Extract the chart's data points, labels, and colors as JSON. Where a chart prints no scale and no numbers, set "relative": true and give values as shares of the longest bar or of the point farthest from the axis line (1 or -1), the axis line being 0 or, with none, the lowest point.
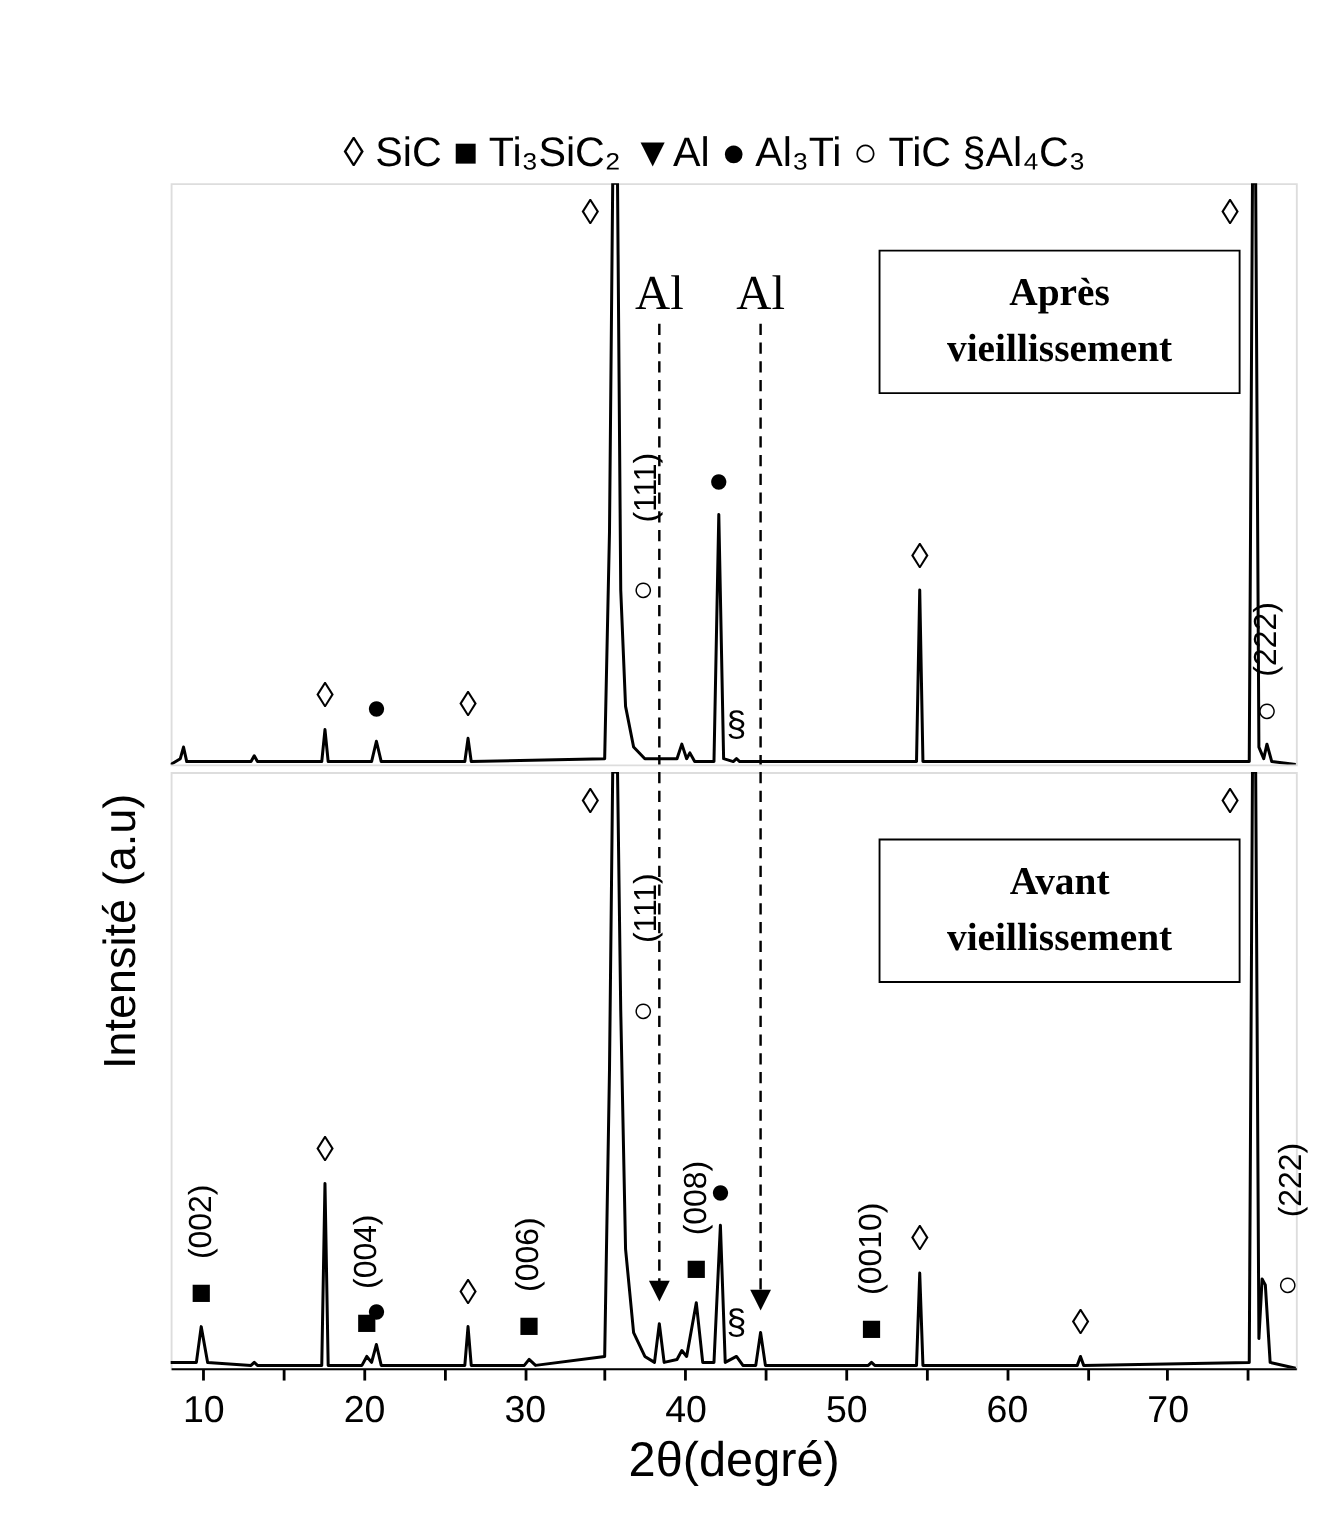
{
  "chart_data": [
    {
      "type": "line",
      "relative": true,
      "xlim": [
        8,
        78
      ],
      "tick_labels": false,
      "grid": false,
      "series": [
        {
          "color": "#000000",
          "x": [
            8.0,
            8.6,
            8.8,
            9.0,
            13.0,
            13.2,
            13.4,
            17.4,
            17.6,
            17.8,
            20.5,
            20.8,
            21.1,
            26.3,
            26.5,
            26.7,
            35.0,
            35.3,
            35.5,
            35.8,
            36.0,
            36.3,
            36.8,
            37.5,
            39.5,
            39.8,
            40.1,
            40.3,
            40.6,
            41.8,
            42.1,
            42.4,
            43.0,
            43.2,
            43.4,
            54.4,
            54.6,
            54.8,
            75.1,
            75.3,
            75.5,
            75.7,
            76.0,
            76.2,
            76.5,
            78.0
          ],
          "values": [
            0,
            0.01,
            0.03,
            0.005,
            0.005,
            0.015,
            0.005,
            0.005,
            0.06,
            0.005,
            0.005,
            0.04,
            0.005,
            0.005,
            0.045,
            0.005,
            0.01,
            0.4,
            1,
            1,
            0.3,
            0.1,
            0.03,
            0.01,
            0.01,
            0.035,
            0.01,
            0.02,
            0.005,
            0.005,
            0.43,
            0.01,
            0.005,
            0.01,
            0.005,
            0.005,
            0.3,
            0.005,
            0.005,
            1,
            1,
            0.03,
            0.01,
            0.035,
            0.005,
            0
          ]
        }
      ],
      "ref_lines": [
        {
          "axis": "x",
          "value": 38.4,
          "label": "Al",
          "line_style": "dashed"
        },
        {
          "axis": "x",
          "value": 44.7,
          "label": "Al",
          "line_style": "dashed"
        }
      ],
      "annotations": [
        "◊ SiC  ■ Ti₃SiC₂  ▼Al  ● Al₃Ti  ○ TiC  §Al₄C₃",
        "Après vieillissement",
        {
          "text": "◊",
          "x": 17.6,
          "y": 0.06
        },
        {
          "text": "●",
          "x": 20.8,
          "y": 0.04
        },
        {
          "text": "◊",
          "x": 26.5,
          "y": 0.045
        },
        {
          "text": "◊",
          "x": 35.5,
          "y": 1
        },
        {
          "text": "○",
          "x": 36.0,
          "y": 0.3
        },
        {
          "text": "(111)",
          "x": 36.0,
          "y": 0.3
        },
        {
          "text": "●",
          "x": 42.1,
          "y": 0.43
        },
        {
          "text": "§",
          "x": 43.2,
          "y": 0.01
        },
        {
          "text": "◊",
          "x": 54.6,
          "y": 0.3
        },
        {
          "text": "◊",
          "x": 75.3,
          "y": 1
        },
        {
          "text": "○",
          "x": 76.2,
          "y": 0.035
        },
        {
          "text": "(222)",
          "x": 76.2,
          "y": 0.035
        }
      ]
    },
    {
      "type": "line",
      "relative": true,
      "xlim": [
        8,
        78
      ],
      "tick_labels": "x",
      "grid": false,
      "xlabel": "2θ(degré)",
      "ylabel": "Intensité (a.u)",
      "xticks": [
        10,
        {
          "value": 15,
          "label": null
        },
        20,
        {
          "value": 25,
          "label": null
        },
        30,
        {
          "value": 35,
          "label": null
        },
        40,
        {
          "value": 45,
          "label": null
        },
        50,
        {
          "value": 55,
          "label": null
        },
        60,
        {
          "value": 65,
          "label": null
        },
        70,
        {
          "value": 75,
          "label": null
        }
      ],
      "series": [
        {
          "color": "#000000",
          "x": [
            8.0,
            9.6,
            9.9,
            10.3,
            13.0,
            13.2,
            13.4,
            17.4,
            17.6,
            17.8,
            19.9,
            20.2,
            20.5,
            20.8,
            21.1,
            26.3,
            26.5,
            26.7,
            30.0,
            30.3,
            30.7,
            35.0,
            35.3,
            35.5,
            35.8,
            36.0,
            36.3,
            36.8,
            37.5,
            38.1,
            38.4,
            38.7,
            39.5,
            39.8,
            40.1,
            40.7,
            41.1,
            41.8,
            42.2,
            42.5,
            43.2,
            43.6,
            44.4,
            44.7,
            45.0,
            51.4,
            51.6,
            51.8,
            54.4,
            54.6,
            54.8,
            64.4,
            64.6,
            64.8,
            75.1,
            75.3,
            75.5,
            75.7,
            75.9,
            76.1,
            76.4,
            78.0
          ],
          "values": [
            0.01,
            0.01,
            0.07,
            0.01,
            0.005,
            0.01,
            0.005,
            0.005,
            0.31,
            0.005,
            0.005,
            0.02,
            0.01,
            0.04,
            0.005,
            0.005,
            0.07,
            0.005,
            0.005,
            0.015,
            0.005,
            0.02,
            0.5,
            1,
            1,
            0.6,
            0.2,
            0.06,
            0.02,
            0.01,
            0.075,
            0.01,
            0.015,
            0.03,
            0.02,
            0.11,
            0.01,
            0.01,
            0.24,
            0.01,
            0.02,
            0.005,
            0.005,
            0.06,
            0.005,
            0.005,
            0.01,
            0.005,
            0.005,
            0.16,
            0.005,
            0.005,
            0.02,
            0.005,
            0.01,
            1,
            1,
            0.05,
            0.15,
            0.14,
            0.01,
            0
          ]
        }
      ],
      "ref_lines": [
        {
          "axis": "x",
          "value": 38.4,
          "line_style": "dashed"
        },
        {
          "axis": "x",
          "value": 44.7,
          "line_style": "dashed"
        }
      ],
      "annotations": [
        "Avant vieillissement",
        {
          "text": "(002)",
          "x": 9.9,
          "y": 0.07
        },
        {
          "text": "■",
          "x": 9.9,
          "y": 0.07
        },
        {
          "text": "◊",
          "x": 17.6,
          "y": 0.31
        },
        {
          "text": "(004)",
          "x": 20.2,
          "y": 0.02
        },
        {
          "text": "■",
          "x": 20.2,
          "y": 0.02
        },
        {
          "text": "●",
          "x": 20.8,
          "y": 0.04
        },
        {
          "text": "◊",
          "x": 26.5,
          "y": 0.07
        },
        {
          "text": "(006)",
          "x": 30.3,
          "y": 0.015
        },
        {
          "text": "■",
          "x": 30.3,
          "y": 0.015
        },
        {
          "text": "◊",
          "x": 35.5,
          "y": 1
        },
        {
          "text": "○",
          "x": 36.0,
          "y": 0.6
        },
        {
          "text": "(111)",
          "x": 36.0,
          "y": 0.6
        },
        {
          "text": "▼",
          "x": 38.4,
          "y": 0.075
        },
        {
          "text": "(008)",
          "x": 40.7,
          "y": 0.11
        },
        {
          "text": "■",
          "x": 40.7,
          "y": 0.11
        },
        {
          "text": "●",
          "x": 42.2,
          "y": 0.24
        },
        {
          "text": "§",
          "x": 43.2,
          "y": 0.02
        },
        {
          "text": "▼",
          "x": 44.7,
          "y": 0.06
        },
        {
          "text": "(0010)",
          "x": 51.6,
          "y": 0.01
        },
        {
          "text": "■",
          "x": 51.6,
          "y": 0.01
        },
        {
          "text": "◊",
          "x": 54.6,
          "y": 0.16
        },
        {
          "text": "◊",
          "x": 64.6,
          "y": 0.02
        },
        {
          "text": "◊",
          "x": 75.3,
          "y": 1
        },
        {
          "text": "○",
          "x": 76.1,
          "y": 0.14
        },
        {
          "text": "(222)",
          "x": 76.1,
          "y": 0.14
        }
      ]
    }
  ]
}
